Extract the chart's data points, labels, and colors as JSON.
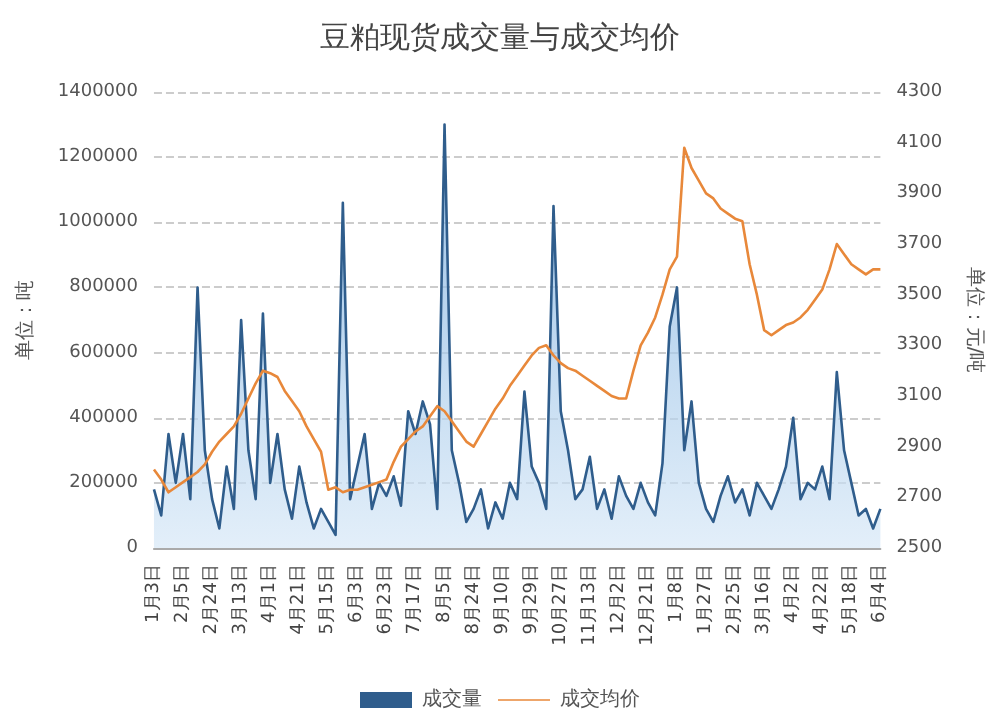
{
  "chart_data": {
    "type": "area",
    "title": "豆粕现货成交量与成交均价",
    "ylabel": "单位：吨",
    "y2label": "单位：元/吨",
    "categories": [
      "1月3日",
      null,
      null,
      null,
      "2月5日",
      null,
      null,
      null,
      "2月24日",
      null,
      null,
      null,
      "3月13日",
      null,
      null,
      null,
      "4月1日",
      null,
      null,
      null,
      "4月21日",
      null,
      null,
      null,
      "5月15日",
      null,
      null,
      null,
      "6月3日",
      null,
      null,
      null,
      "6月23日",
      null,
      null,
      null,
      "7月17日",
      null,
      null,
      null,
      "8月5日",
      null,
      null,
      null,
      "8月24日",
      null,
      null,
      null,
      "9月10日",
      null,
      null,
      null,
      "9月29日",
      null,
      null,
      null,
      "10月27日",
      null,
      null,
      null,
      "11月13日",
      null,
      null,
      null,
      "12月2日",
      null,
      null,
      null,
      "12月21日",
      null,
      null,
      null,
      "1月8日",
      null,
      null,
      null,
      "1月27日",
      null,
      null,
      null,
      "2月25日",
      null,
      null,
      null,
      "3月16日",
      null,
      null,
      null,
      "4月2日",
      null,
      null,
      null,
      "4月22日",
      null,
      null,
      null,
      "5月18日",
      null,
      null,
      null,
      "6月4日"
    ],
    "series": [
      {
        "name": "成交量",
        "color": "#2f5d8c",
        "values": [
          180000,
          100000,
          350000,
          200000,
          350000,
          150000,
          800000,
          300000,
          150000,
          60000,
          250000,
          120000,
          700000,
          300000,
          150000,
          720000,
          200000,
          350000,
          180000,
          90000,
          250000,
          140000,
          60000,
          120000,
          80000,
          40000,
          1060000,
          150000,
          250000,
          350000,
          120000,
          200000,
          160000,
          220000,
          130000,
          420000,
          350000,
          450000,
          380000,
          120000,
          1300000,
          300000,
          200000,
          80000,
          120000,
          180000,
          60000,
          140000,
          90000,
          200000,
          150000,
          480000,
          250000,
          200000,
          120000,
          1050000,
          420000,
          300000,
          150000,
          180000,
          280000,
          120000,
          180000,
          90000,
          220000,
          160000,
          120000,
          200000,
          140000,
          100000,
          260000,
          680000,
          800000,
          300000,
          450000,
          200000,
          120000,
          80000,
          160000,
          220000,
          140000,
          180000,
          100000,
          200000,
          160000,
          120000,
          180000,
          250000,
          400000,
          150000,
          200000,
          180000,
          250000,
          150000,
          540000,
          300000,
          200000,
          100000,
          120000,
          60000,
          120000
        ]
      },
      {
        "name": "成交均价",
        "type": "line",
        "axis": "y2",
        "color": "#e8883a",
        "values": [
          2810,
          2770,
          2720,
          2740,
          2760,
          2780,
          2800,
          2830,
          2880,
          2920,
          2950,
          2980,
          3030,
          3090,
          3150,
          3200,
          3190,
          3175,
          3120,
          3080,
          3040,
          2980,
          2930,
          2880,
          2730,
          2740,
          2720,
          2730,
          2730,
          2740,
          2750,
          2760,
          2770,
          2840,
          2900,
          2930,
          2960,
          2980,
          3020,
          3060,
          3040,
          3000,
          2960,
          2920,
          2900,
          2950,
          3000,
          3050,
          3090,
          3140,
          3180,
          3220,
          3260,
          3290,
          3300,
          3260,
          3230,
          3210,
          3200,
          3180,
          3160,
          3140,
          3120,
          3100,
          3090,
          3090,
          3200,
          3300,
          3350,
          3410,
          3500,
          3600,
          3650,
          4080,
          4000,
          3950,
          3900,
          3880,
          3840,
          3820,
          3800,
          3790,
          3620,
          3500,
          3360,
          3340,
          3360,
          3380,
          3390,
          3410,
          3440,
          3480,
          3520,
          3600,
          3700,
          3660,
          3620,
          3600,
          3580,
          3600,
          3600
        ]
      }
    ],
    "ylim": [
      0,
      1400000
    ],
    "yticks": [
      0,
      200000,
      400000,
      600000,
      800000,
      1000000,
      1200000,
      1400000
    ],
    "y2lim": [
      2500,
      4300
    ],
    "y2ticks": [
      2500,
      2700,
      2900,
      3100,
      3300,
      3500,
      3700,
      3900,
      4100,
      4300
    ],
    "grid": "y",
    "legend": "bottom",
    "marker": "none"
  }
}
